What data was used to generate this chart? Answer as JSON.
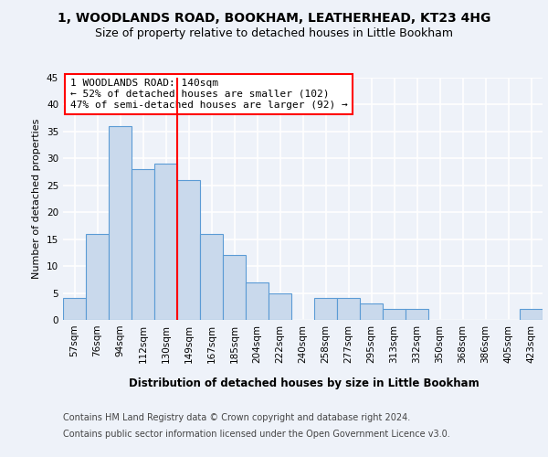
{
  "title1": "1, WOODLANDS ROAD, BOOKHAM, LEATHERHEAD, KT23 4HG",
  "title2": "Size of property relative to detached houses in Little Bookham",
  "xlabel": "Distribution of detached houses by size in Little Bookham",
  "ylabel": "Number of detached properties",
  "categories": [
    "57sqm",
    "76sqm",
    "94sqm",
    "112sqm",
    "130sqm",
    "149sqm",
    "167sqm",
    "185sqm",
    "204sqm",
    "222sqm",
    "240sqm",
    "258sqm",
    "277sqm",
    "295sqm",
    "313sqm",
    "332sqm",
    "350sqm",
    "368sqm",
    "386sqm",
    "405sqm",
    "423sqm"
  ],
  "values": [
    4,
    16,
    36,
    28,
    29,
    26,
    16,
    12,
    7,
    5,
    0,
    4,
    4,
    3,
    2,
    2,
    0,
    0,
    0,
    0,
    2
  ],
  "bar_color": "#c9d9ec",
  "bar_edge_color": "#5b9bd5",
  "subject_label": "1 WOODLANDS ROAD: 140sqm",
  "annotation_line1": "← 52% of detached houses are smaller (102)",
  "annotation_line2": "47% of semi-detached houses are larger (92) →",
  "subject_line_index": 5,
  "ylim": [
    0,
    45
  ],
  "yticks": [
    0,
    5,
    10,
    15,
    20,
    25,
    30,
    35,
    40,
    45
  ],
  "footnote1": "Contains HM Land Registry data © Crown copyright and database right 2024.",
  "footnote2": "Contains public sector information licensed under the Open Government Licence v3.0.",
  "background_color": "#eef2f9",
  "plot_bg_color": "#eef2f9",
  "grid_color": "#ffffff",
  "title1_fontsize": 10,
  "title2_fontsize": 9,
  "axis_label_fontsize": 8.5,
  "ylabel_fontsize": 8,
  "tick_fontsize": 7.5,
  "annotation_fontsize": 8,
  "footnote_fontsize": 7
}
